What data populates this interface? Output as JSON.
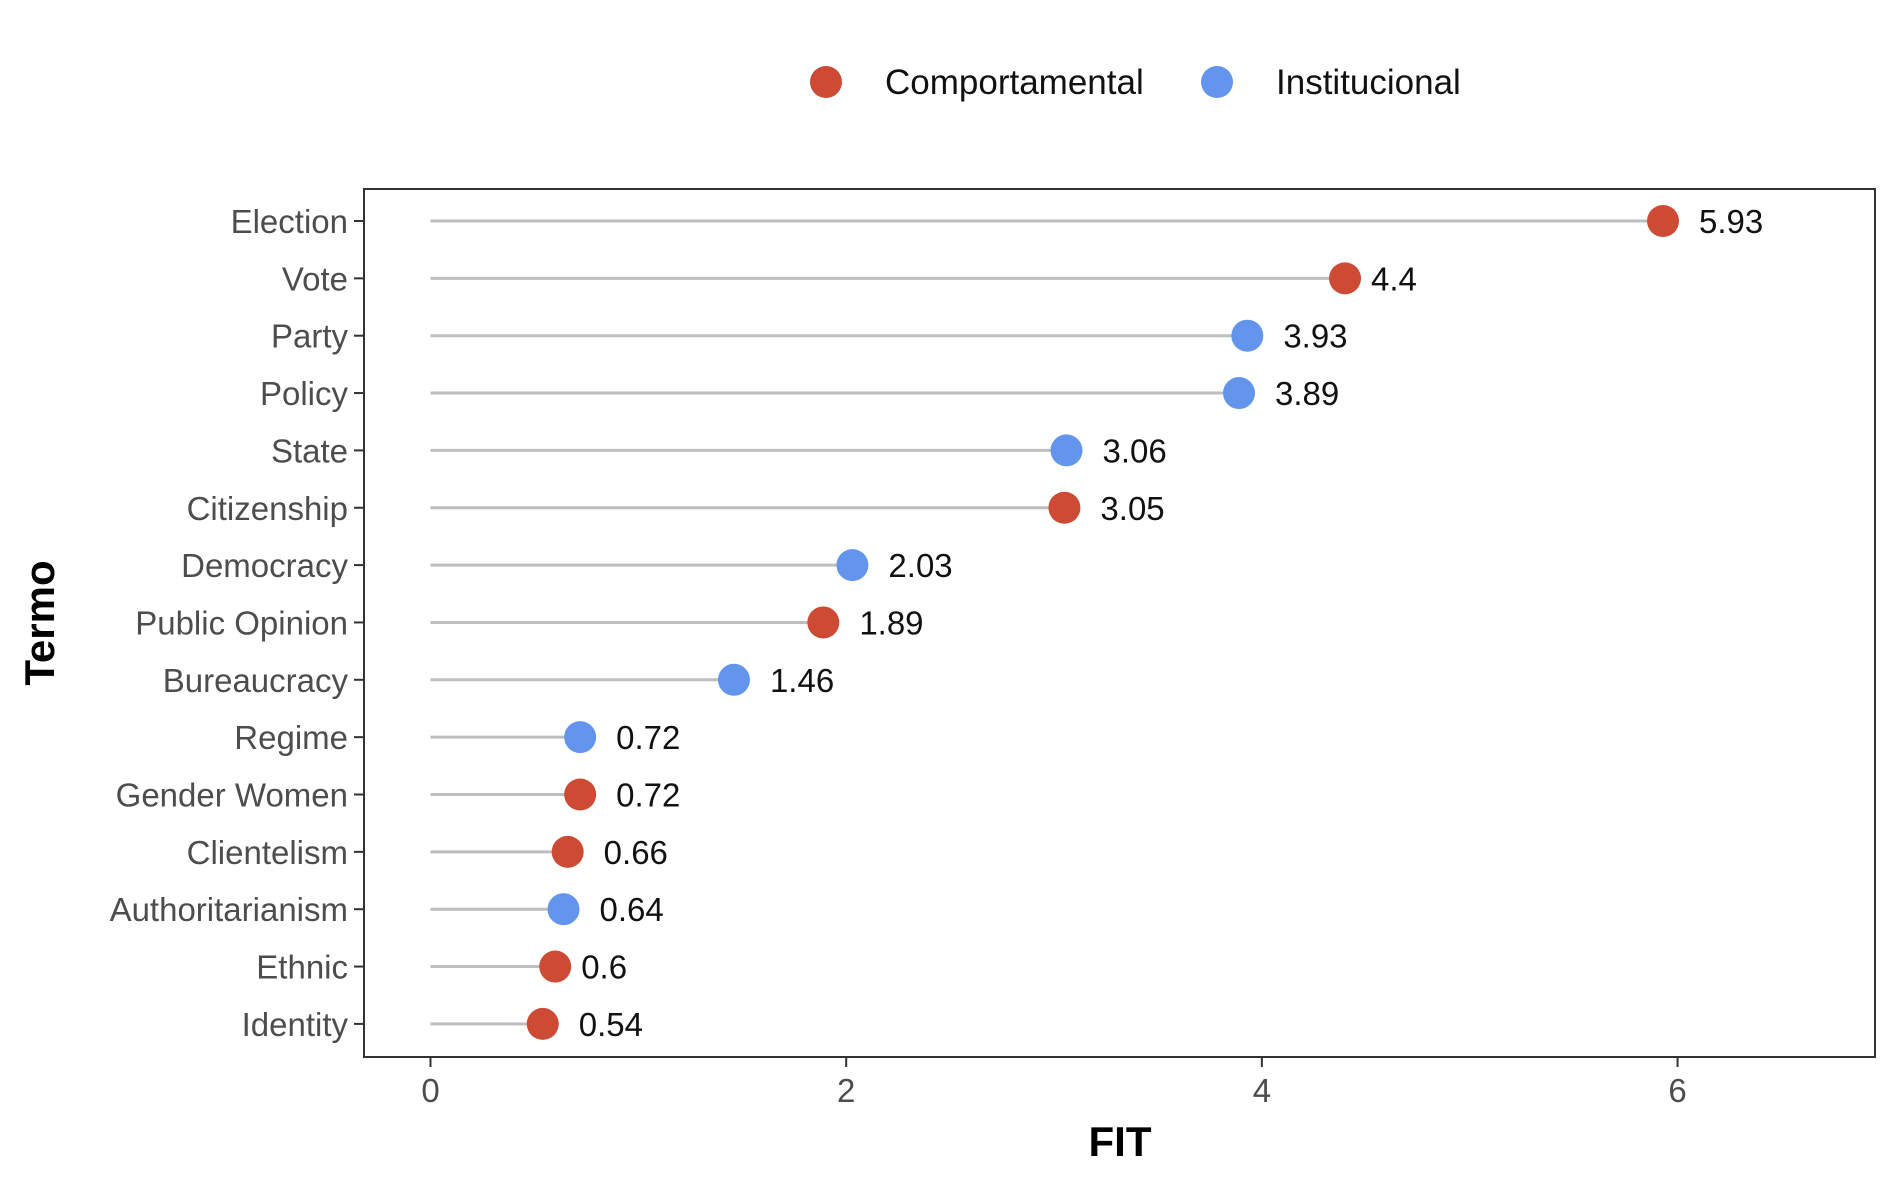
{
  "chart_data": {
    "type": "scatter",
    "style": "lollipop",
    "orientation": "horizontal",
    "xlabel": "FIT",
    "ylabel": "Termo",
    "xlim": [
      -0.32,
      6.95
    ],
    "xticks": [
      0,
      2,
      4,
      6
    ],
    "grid": false,
    "legend_position": "top",
    "legend": [
      {
        "name": "Comportamental",
        "color": "#cd4b35"
      },
      {
        "name": "Institucional",
        "color": "#6495ed"
      }
    ],
    "stem_color": "#bebebe",
    "categories": [
      "Election",
      "Vote",
      "Party",
      "Policy",
      "State",
      "Citizenship",
      "Democracy",
      "Public Opinion",
      "Bureaucracy",
      "Regime",
      "Gender Women",
      "Clientelism",
      "Authoritarianism",
      "Ethnic",
      "Identity"
    ],
    "points": [
      {
        "term": "Election",
        "value": 5.93,
        "label": "5.93",
        "group": "Comportamental"
      },
      {
        "term": "Vote",
        "value": 4.4,
        "label": "4.4",
        "group": "Comportamental"
      },
      {
        "term": "Party",
        "value": 3.93,
        "label": "3.93",
        "group": "Institucional"
      },
      {
        "term": "Policy",
        "value": 3.89,
        "label": "3.89",
        "group": "Institucional"
      },
      {
        "term": "State",
        "value": 3.06,
        "label": "3.06",
        "group": "Institucional"
      },
      {
        "term": "Citizenship",
        "value": 3.05,
        "label": "3.05",
        "group": "Comportamental"
      },
      {
        "term": "Democracy",
        "value": 2.03,
        "label": "2.03",
        "group": "Institucional"
      },
      {
        "term": "Public Opinion",
        "value": 1.89,
        "label": "1.89",
        "group": "Comportamental"
      },
      {
        "term": "Bureaucracy",
        "value": 1.46,
        "label": "1.46",
        "group": "Institucional"
      },
      {
        "term": "Regime",
        "value": 0.72,
        "label": "0.72",
        "group": "Institucional"
      },
      {
        "term": "Gender Women",
        "value": 0.72,
        "label": "0.72",
        "group": "Comportamental"
      },
      {
        "term": "Clientelism",
        "value": 0.66,
        "label": "0.66",
        "group": "Comportamental"
      },
      {
        "term": "Authoritarianism",
        "value": 0.64,
        "label": "0.64",
        "group": "Institucional"
      },
      {
        "term": "Ethnic",
        "value": 0.6,
        "label": "0.6",
        "group": "Comportamental"
      },
      {
        "term": "Identity",
        "value": 0.54,
        "label": "0.54",
        "group": "Comportamental"
      }
    ]
  }
}
